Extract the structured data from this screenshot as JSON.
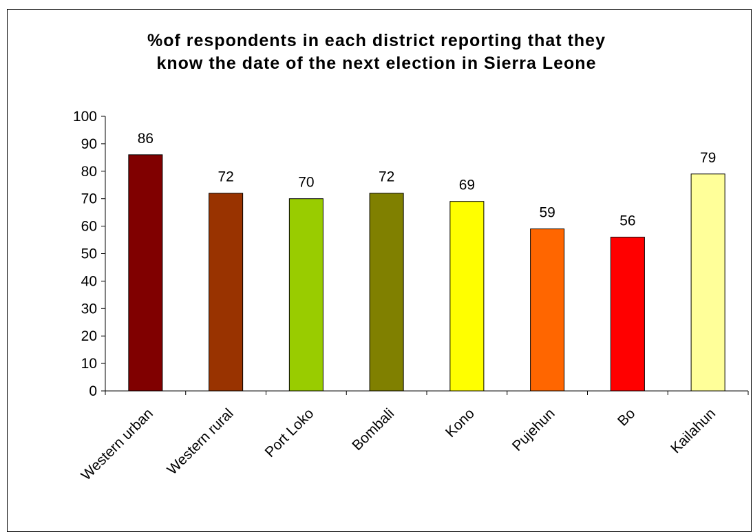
{
  "chart_data": {
    "type": "bar",
    "title_lines": [
      "%of respondents in each district reporting that they",
      "know the date of the next election in Sierra Leone"
    ],
    "categories": [
      "Western urban",
      "Western rural",
      "Port Loko",
      "Bombali",
      "Kono",
      "Pujehun",
      "Bo",
      "Kailahun"
    ],
    "values": [
      86,
      72,
      70,
      72,
      69,
      59,
      56,
      79
    ],
    "data_labels": [
      "86",
      "72",
      "70",
      "72",
      "69",
      "59",
      "56",
      "79"
    ],
    "colors": [
      "#800000",
      "#993300",
      "#99cc00",
      "#808000",
      "#ffff00",
      "#ff6600",
      "#ff0000",
      "#ffff99"
    ],
    "ylim": [
      0,
      100
    ],
    "yticks": [
      0,
      10,
      20,
      30,
      40,
      50,
      60,
      70,
      80,
      90,
      100
    ],
    "xlabel": "",
    "ylabel": "",
    "grid": false,
    "legend": "none"
  }
}
